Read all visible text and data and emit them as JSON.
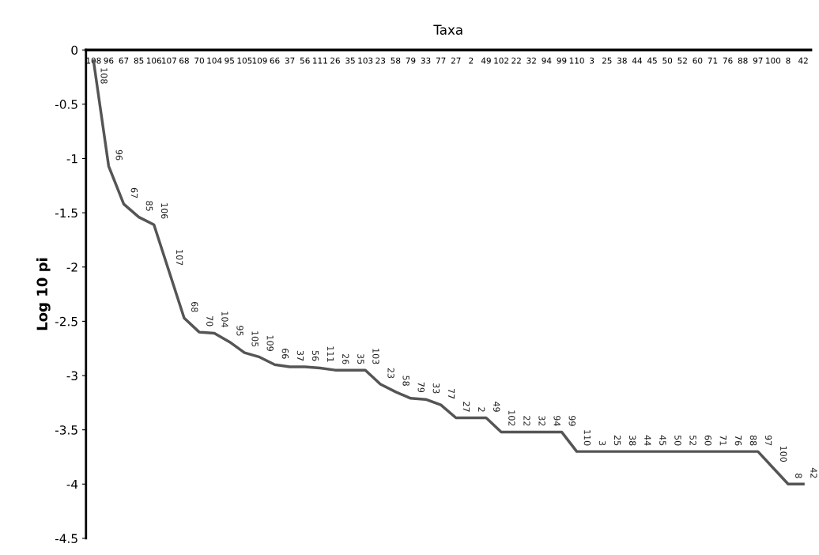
{
  "chart_data": {
    "type": "line",
    "xlabel": "Taxa",
    "ylabel": "Log 10 pi",
    "categories": [
      "108",
      "96",
      "67",
      "85",
      "106",
      "107",
      "68",
      "70",
      "104",
      "95",
      "105",
      "109",
      "66",
      "37",
      "56",
      "111",
      "26",
      "35",
      "103",
      "23",
      "58",
      "79",
      "33",
      "77",
      "27",
      "2",
      "49",
      "102",
      "22",
      "32",
      "94",
      "99",
      "110",
      "3",
      "25",
      "38",
      "44",
      "45",
      "50",
      "52",
      "60",
      "71",
      "76",
      "88",
      "97",
      "100",
      "8",
      "42"
    ],
    "series": [
      {
        "color": "#555555",
        "values": [
          -0.1,
          -1.07,
          -1.42,
          -1.54,
          -1.61,
          -2.04,
          -2.47,
          -2.6,
          -2.61,
          -2.69,
          -2.79,
          -2.83,
          -2.9,
          -2.92,
          -2.92,
          -2.93,
          -2.95,
          -2.95,
          -2.95,
          -3.08,
          -3.15,
          -3.21,
          -3.22,
          -3.27,
          -3.39,
          -3.39,
          -3.39,
          -3.52,
          -3.52,
          -3.52,
          -3.52,
          -3.52,
          -3.7,
          -3.7,
          -3.7,
          -3.7,
          -3.7,
          -3.7,
          -3.7,
          -3.7,
          -3.7,
          -3.7,
          -3.7,
          -3.7,
          -3.7,
          -3.85,
          -4.0,
          -4.0
        ]
      }
    ],
    "annotations": [
      {
        "text": "108",
        "x": "108",
        "y": -0.1
      },
      {
        "text": "96",
        "x": "96",
        "y": -1.07
      },
      {
        "text": "67",
        "x": "67",
        "y": -1.42
      },
      {
        "text": "85",
        "x": "85",
        "y": -1.54
      },
      {
        "text": "106",
        "x": "106",
        "y": -1.61
      },
      {
        "text": "107",
        "x": "107",
        "y": -2.04
      },
      {
        "text": "68",
        "x": "68",
        "y": -2.47
      },
      {
        "text": "70",
        "x": "70",
        "y": -2.6
      },
      {
        "text": "104",
        "x": "104",
        "y": -2.61
      },
      {
        "text": "95",
        "x": "95",
        "y": -2.69
      },
      {
        "text": "105",
        "x": "105",
        "y": -2.79
      },
      {
        "text": "109",
        "x": "109",
        "y": -2.83
      },
      {
        "text": "66",
        "x": "66",
        "y": -2.9
      },
      {
        "text": "37",
        "x": "37",
        "y": -2.92
      },
      {
        "text": "56",
        "x": "56",
        "y": -2.92
      },
      {
        "text": "111",
        "x": "111",
        "y": -2.93
      },
      {
        "text": "26",
        "x": "26",
        "y": -2.95
      },
      {
        "text": "35",
        "x": "35",
        "y": -2.95
      },
      {
        "text": "103",
        "x": "103",
        "y": -2.95
      },
      {
        "text": "23",
        "x": "23",
        "y": -3.08
      },
      {
        "text": "58",
        "x": "58",
        "y": -3.15
      },
      {
        "text": "79",
        "x": "79",
        "y": -3.21
      },
      {
        "text": "33",
        "x": "33",
        "y": -3.22
      },
      {
        "text": "77",
        "x": "77",
        "y": -3.27
      },
      {
        "text": "27",
        "x": "27",
        "y": -3.39
      },
      {
        "text": "2",
        "x": "2",
        "y": -3.39
      },
      {
        "text": "49",
        "x": "49",
        "y": -3.39
      },
      {
        "text": "102",
        "x": "102",
        "y": -3.52
      },
      {
        "text": "22",
        "x": "22",
        "y": -3.52
      },
      {
        "text": "32",
        "x": "32",
        "y": -3.52
      },
      {
        "text": "94",
        "x": "94",
        "y": -3.52
      },
      {
        "text": "99",
        "x": "99",
        "y": -3.52
      },
      {
        "text": "110",
        "x": "110",
        "y": -3.7
      },
      {
        "text": "3",
        "x": "3",
        "y": -3.7
      },
      {
        "text": "25",
        "x": "25",
        "y": -3.7
      },
      {
        "text": "38",
        "x": "38",
        "y": -3.7
      },
      {
        "text": "44",
        "x": "44",
        "y": -3.7
      },
      {
        "text": "45",
        "x": "45",
        "y": -3.7
      },
      {
        "text": "50",
        "x": "50",
        "y": -3.7
      },
      {
        "text": "52",
        "x": "52",
        "y": -3.7
      },
      {
        "text": "60",
        "x": "60",
        "y": -3.7
      },
      {
        "text": "71",
        "x": "71",
        "y": -3.7
      },
      {
        "text": "76",
        "x": "76",
        "y": -3.7
      },
      {
        "text": "88",
        "x": "88",
        "y": -3.7
      },
      {
        "text": "97",
        "x": "97",
        "y": -3.7
      },
      {
        "text": "100",
        "x": "100",
        "y": -3.85
      },
      {
        "text": "8",
        "x": "8",
        "y": -4.0
      },
      {
        "text": "42",
        "x": "42",
        "y": -4.0
      }
    ],
    "ylim": [
      -4.5,
      0
    ],
    "yticks": [
      0,
      -0.5,
      -1,
      -1.5,
      -2,
      -2.5,
      -3,
      -3.5,
      -4,
      -4.5
    ],
    "grid": false,
    "marker": "none",
    "line_style": "solid"
  }
}
